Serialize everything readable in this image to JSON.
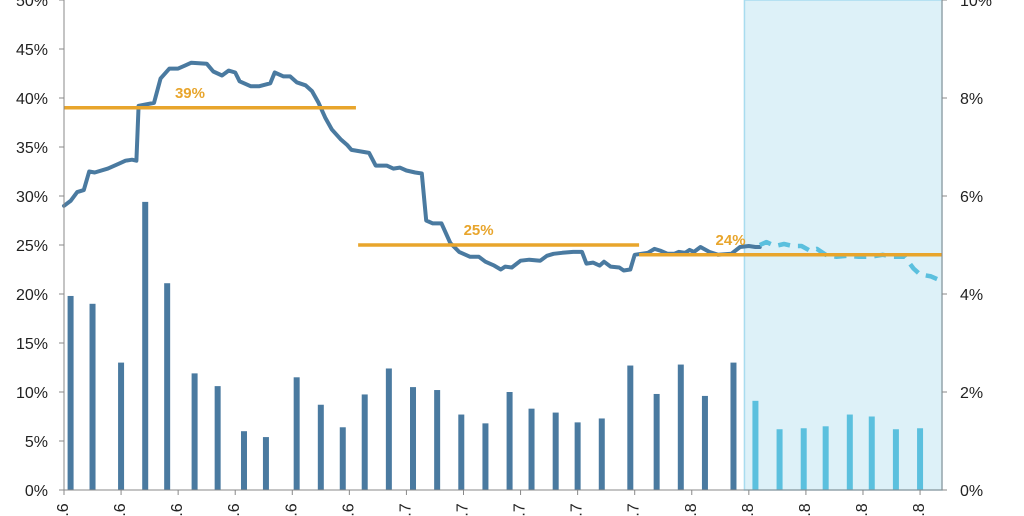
{
  "chart_data": {
    "type": "line+bar",
    "title": "",
    "xlabel": "",
    "y_left": {
      "range": [
        0,
        50
      ],
      "unit": "%",
      "ticks": [
        0,
        5,
        10,
        15,
        20,
        25,
        30,
        35,
        40,
        45,
        50
      ],
      "tick_labels": [
        "0%",
        "5%",
        "10%",
        "15%",
        "20%",
        "25%",
        "30%",
        "35%",
        "40%",
        "45%",
        "50%"
      ]
    },
    "y_right": {
      "range": [
        0,
        10
      ],
      "unit": "%",
      "ticks": [
        0,
        2,
        4,
        6,
        8,
        10
      ],
      "tick_labels": [
        "0%",
        "2%",
        "4%",
        "6%",
        "8%",
        "10%"
      ]
    },
    "x_range": [
      0,
      40
    ],
    "x_tick_positions": [
      0,
      2.6,
      5.2,
      7.8,
      10.4,
      13.0,
      15.6,
      18.2,
      20.8,
      23.4,
      26.0,
      28.6,
      31.2,
      33.8,
      36.4,
      39.0
    ],
    "x_tick_labels": [
      ".6",
      ".6",
      ".6",
      ".6",
      ".6",
      ".6",
      ".7",
      ".7",
      ".7",
      ".7",
      ".7",
      ".8",
      ".8",
      ".8",
      ".8",
      ".8"
    ],
    "x_tick_truncated": true,
    "grid": false,
    "colors": {
      "line": "#4A7AA0",
      "forecast": "#5BC0DE",
      "bar": "#4A7AA0",
      "bar_forecast": "#5BC0DE",
      "average": "#E8A52C",
      "shade": "#DDF1F8",
      "shade_border": "#A8DCEF",
      "axis": "#888888"
    },
    "forecast_start_x": 31.0,
    "series_line": {
      "axis": "left",
      "actual_points": [
        [
          0.0,
          29.0
        ],
        [
          0.3,
          29.5
        ],
        [
          0.6,
          30.4
        ],
        [
          0.9,
          30.6
        ],
        [
          1.15,
          32.5
        ],
        [
          1.4,
          32.4
        ],
        [
          2.0,
          32.8
        ],
        [
          2.5,
          33.3
        ],
        [
          2.8,
          33.6
        ],
        [
          3.1,
          33.7
        ],
        [
          3.3,
          33.6
        ],
        [
          3.4,
          39.2
        ],
        [
          4.1,
          39.5
        ],
        [
          4.4,
          42.0
        ],
        [
          4.8,
          43.0
        ],
        [
          5.2,
          43.0
        ],
        [
          5.5,
          43.3
        ],
        [
          5.8,
          43.6
        ],
        [
          6.5,
          43.5
        ],
        [
          6.8,
          42.7
        ],
        [
          7.2,
          42.3
        ],
        [
          7.5,
          42.8
        ],
        [
          7.8,
          42.6
        ],
        [
          8.0,
          41.7
        ],
        [
          8.5,
          41.2
        ],
        [
          8.9,
          41.2
        ],
        [
          9.4,
          41.5
        ],
        [
          9.6,
          42.6
        ],
        [
          10.0,
          42.2
        ],
        [
          10.3,
          42.2
        ],
        [
          10.6,
          41.6
        ],
        [
          11.0,
          41.3
        ],
        [
          11.3,
          40.7
        ],
        [
          11.6,
          39.5
        ],
        [
          11.9,
          38.0
        ],
        [
          12.2,
          36.8
        ],
        [
          12.6,
          35.8
        ],
        [
          12.9,
          35.2
        ],
        [
          13.1,
          34.7
        ],
        [
          13.9,
          34.4
        ],
        [
          14.2,
          33.1
        ],
        [
          14.7,
          33.1
        ],
        [
          15.0,
          32.8
        ],
        [
          15.3,
          32.9
        ],
        [
          15.6,
          32.6
        ],
        [
          16.0,
          32.4
        ],
        [
          16.3,
          32.3
        ],
        [
          16.5,
          27.5
        ],
        [
          16.8,
          27.2
        ],
        [
          17.2,
          27.2
        ],
        [
          17.6,
          25.2
        ],
        [
          18.0,
          24.3
        ],
        [
          18.5,
          23.8
        ],
        [
          18.9,
          23.8
        ],
        [
          19.2,
          23.3
        ],
        [
          19.6,
          22.9
        ],
        [
          19.9,
          22.5
        ],
        [
          20.1,
          22.8
        ],
        [
          20.4,
          22.7
        ],
        [
          20.8,
          23.4
        ],
        [
          21.2,
          23.5
        ],
        [
          21.7,
          23.4
        ],
        [
          22.0,
          23.9
        ],
        [
          22.3,
          24.1
        ],
        [
          22.7,
          24.2
        ],
        [
          23.2,
          24.3
        ],
        [
          23.6,
          24.3
        ],
        [
          23.8,
          23.1
        ],
        [
          24.1,
          23.2
        ],
        [
          24.4,
          22.9
        ],
        [
          24.6,
          23.3
        ],
        [
          24.9,
          22.8
        ],
        [
          25.3,
          22.7
        ],
        [
          25.5,
          22.4
        ],
        [
          25.8,
          22.5
        ],
        [
          26.0,
          24.0
        ],
        [
          26.6,
          24.2
        ],
        [
          26.9,
          24.6
        ],
        [
          27.2,
          24.4
        ],
        [
          27.5,
          24.1
        ],
        [
          27.8,
          24.1
        ],
        [
          28.0,
          24.3
        ],
        [
          28.3,
          24.2
        ],
        [
          28.5,
          24.5
        ],
        [
          28.7,
          24.3
        ],
        [
          29.0,
          24.8
        ],
        [
          29.4,
          24.3
        ],
        [
          29.8,
          24.0
        ],
        [
          30.4,
          24.1
        ],
        [
          30.8,
          24.8
        ],
        [
          31.2,
          24.9
        ],
        [
          31.5,
          24.8
        ],
        [
          31.7,
          24.8
        ]
      ],
      "forecast_points": [
        [
          31.7,
          25.0
        ],
        [
          32.0,
          25.3
        ],
        [
          32.4,
          24.9
        ],
        [
          32.8,
          25.1
        ],
        [
          33.2,
          24.9
        ],
        [
          33.6,
          24.9
        ],
        [
          34.0,
          24.4
        ],
        [
          34.3,
          24.6
        ],
        [
          34.7,
          24.0
        ],
        [
          35.2,
          23.8
        ],
        [
          35.7,
          23.9
        ],
        [
          36.2,
          23.8
        ],
        [
          36.7,
          23.8
        ],
        [
          37.3,
          24.0
        ],
        [
          37.8,
          23.8
        ],
        [
          38.3,
          23.8
        ],
        [
          38.7,
          22.6
        ],
        [
          39.0,
          22.0
        ],
        [
          39.5,
          21.8
        ],
        [
          39.8,
          21.5
        ]
      ]
    },
    "series_bars": {
      "axis": "right",
      "values": [
        3.96,
        3.8,
        2.6,
        5.88,
        4.22,
        2.38,
        2.12,
        1.2,
        1.08,
        2.3,
        1.74,
        1.28,
        1.95,
        2.48,
        2.1,
        2.04,
        1.54,
        1.36,
        2.0,
        1.66,
        1.58,
        1.38,
        1.46,
        2.54,
        1.96,
        2.56,
        1.92,
        2.6,
        1.82,
        1.24,
        1.26,
        1.3,
        1.54,
        1.5,
        1.24,
        1.26
      ],
      "x_positions": [
        0.3,
        1.3,
        2.6,
        3.7,
        4.7,
        5.95,
        7.0,
        8.2,
        9.2,
        10.6,
        11.7,
        12.7,
        13.7,
        14.8,
        15.9,
        17.0,
        18.1,
        19.2,
        20.3,
        21.3,
        22.4,
        23.4,
        24.5,
        25.8,
        27.0,
        28.1,
        29.2,
        30.5,
        31.5,
        32.6,
        33.7,
        34.7,
        35.8,
        36.8,
        37.9,
        39.0
      ],
      "forecast_from_index": 28
    },
    "averages": [
      {
        "label": "39%",
        "value": 39,
        "x_start": 0.0,
        "x_end": 13.3
      },
      {
        "label": "25%",
        "value": 25,
        "x_start": 13.4,
        "x_end": 26.2
      },
      {
        "label": "24%",
        "value": 24,
        "x_start": 26.2,
        "x_end": 40.0
      }
    ]
  }
}
